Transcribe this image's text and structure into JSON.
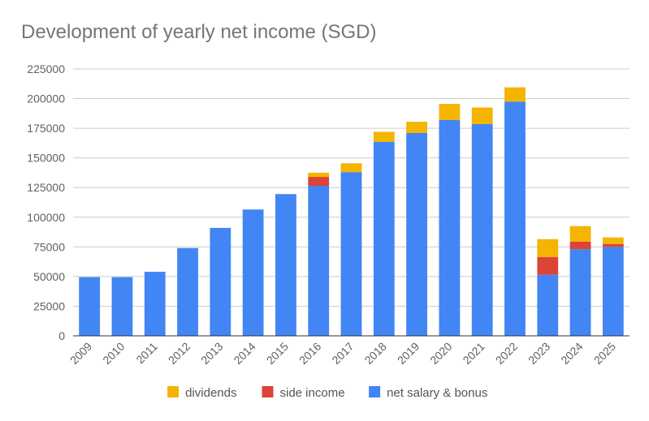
{
  "chart_data": {
    "type": "bar",
    "stacked": true,
    "title": "Development of yearly net income (SGD)",
    "xlabel": "",
    "ylabel": "",
    "ylim": [
      0,
      225000
    ],
    "yticks": [
      0,
      25000,
      50000,
      75000,
      100000,
      125000,
      150000,
      175000,
      200000,
      225000
    ],
    "grid": true,
    "legend_position": "bottom",
    "categories": [
      "2009",
      "2010",
      "2011",
      "2012",
      "2013",
      "2014",
      "2015",
      "2016",
      "2017",
      "2018",
      "2019",
      "2020",
      "2021",
      "2022",
      "2023",
      "2024",
      "2025"
    ],
    "series": [
      {
        "name": "net salary & bonus",
        "color": "#4285f4",
        "values": [
          49500,
          49500,
          54000,
          74000,
          91000,
          106500,
          119500,
          126500,
          138000,
          163500,
          171000,
          182000,
          178500,
          197500,
          51500,
          73000,
          75000
        ]
      },
      {
        "name": "side income",
        "color": "#db4437",
        "values": [
          0,
          0,
          0,
          0,
          0,
          0,
          0,
          7500,
          0,
          0,
          0,
          0,
          0,
          0,
          15000,
          6500,
          2500
        ]
      },
      {
        "name": "dividends",
        "color": "#f4b400",
        "values": [
          0,
          0,
          0,
          0,
          0,
          0,
          0,
          3500,
          7500,
          8500,
          9500,
          13500,
          14000,
          12000,
          15000,
          13000,
          5500
        ]
      }
    ],
    "legend_order": [
      "dividends",
      "side income",
      "net salary & bonus"
    ]
  }
}
